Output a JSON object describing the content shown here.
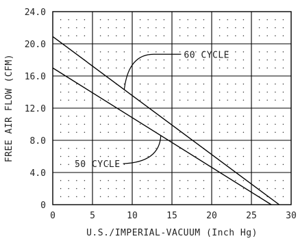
{
  "chart_data": {
    "type": "line",
    "title": "",
    "xlabel": "U.S./IMPERIAL-VACUUM (Inch Hg)",
    "ylabel": "FREE AIR FLOW (CFM)",
    "xlim": [
      0,
      30
    ],
    "ylim": [
      0,
      24
    ],
    "x_ticks": [
      "0",
      "5",
      "10",
      "15",
      "20",
      "25",
      "30"
    ],
    "y_ticks": [
      "0",
      "4.0",
      "8.0",
      "12.0",
      "16.0",
      "20.0",
      "24.0"
    ],
    "grid": true,
    "minor_grid": "dotted",
    "series": [
      {
        "name": "60 CYCLE",
        "x": [
          0,
          28.5
        ],
        "y": [
          20.9,
          0
        ]
      },
      {
        "name": "50 CYCLE",
        "x": [
          0,
          27.5
        ],
        "y": [
          17.0,
          0
        ]
      }
    ],
    "annotations": [
      {
        "text": "60 CYCLE",
        "points_to": [
          9.0,
          14.3
        ],
        "label_at": [
          16.5,
          18.7
        ]
      },
      {
        "text": "50 CYCLE",
        "points_to": [
          13.6,
          8.6
        ],
        "label_at": [
          8.5,
          5.1
        ]
      }
    ]
  }
}
